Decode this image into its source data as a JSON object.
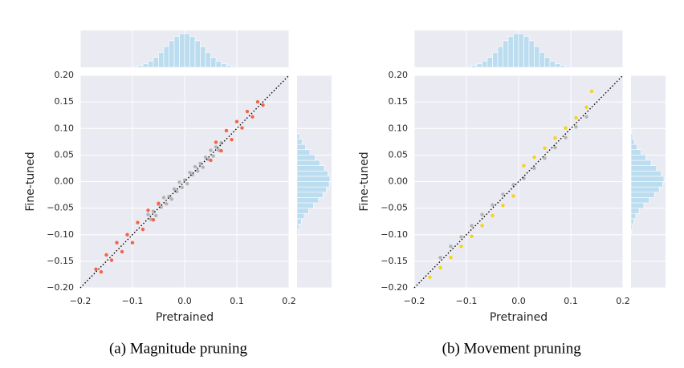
{
  "chart_data": [
    {
      "type": "scatter",
      "caption": "(a) Magnitude pruning",
      "xlabel": "Pretrained",
      "ylabel": "Fine-tuned",
      "xlim": [
        -0.2,
        0.2
      ],
      "ylim": [
        -0.2,
        0.2
      ],
      "xticks": [
        {
          "value": -0.2,
          "label": "−0.2"
        },
        {
          "value": -0.1,
          "label": "−0.1"
        },
        {
          "value": 0,
          "label": "0.0"
        },
        0.1,
        0.2
      ],
      "yticks": [
        {
          "value": -0.2,
          "label": "−0.20"
        },
        {
          "value": -0.15,
          "label": "−0.15"
        },
        {
          "value": -0.1,
          "label": "−0.10"
        },
        {
          "value": -0.05,
          "label": "−0.05"
        },
        {
          "value": 0,
          "label": "0.00"
        },
        0.05,
        {
          "value": 0.1,
          "label": "0.10"
        },
        0.15,
        {
          "value": 0.2,
          "label": "0.20"
        }
      ],
      "grid": true,
      "series": [
        {
          "color": "#b3b3b3",
          "x": [
            -0.07,
            -0.065,
            -0.06,
            -0.055,
            -0.05,
            -0.045,
            -0.04,
            -0.035,
            -0.03,
            -0.025,
            -0.02,
            -0.015,
            -0.01,
            -0.005,
            0,
            0.005,
            0.01,
            0.015,
            0.02,
            0.025,
            0.03,
            0.035,
            0.04,
            0.045,
            0.05,
            0.055,
            0.06,
            0.065,
            0.07
          ],
          "values": [
            -0.062,
            -0.071,
            -0.056,
            -0.064,
            -0.043,
            -0.048,
            -0.03,
            -0.042,
            -0.028,
            -0.033,
            -0.014,
            -0.019,
            -0.001,
            -0.011,
            0.003,
            -0.004,
            0.017,
            0.013,
            0.028,
            0.02,
            0.034,
            0.027,
            0.046,
            0.042,
            0.059,
            0.048,
            0.065,
            0.059,
            0.073
          ]
        },
        {
          "color": "#f4634a",
          "x": [
            -0.17,
            -0.16,
            -0.15,
            -0.14,
            -0.13,
            -0.12,
            -0.11,
            -0.1,
            -0.09,
            -0.08,
            -0.07,
            -0.06,
            -0.05,
            0.05,
            0.06,
            0.07,
            0.08,
            0.09,
            0.1,
            0.11,
            0.12,
            0.13,
            0.14,
            0.15
          ],
          "values": [
            -0.165,
            -0.17,
            -0.138,
            -0.148,
            -0.115,
            -0.132,
            -0.1,
            -0.115,
            -0.077,
            -0.09,
            -0.054,
            -0.072,
            -0.041,
            0.04,
            0.074,
            0.058,
            0.096,
            0.079,
            0.113,
            0.101,
            0.132,
            0.122,
            0.15,
            0.144
          ]
        }
      ],
      "marginal_x": {
        "color": "#bcdcf0",
        "bins": [
          -0.1,
          -0.09,
          -0.08,
          -0.07,
          -0.06,
          -0.05,
          -0.04,
          -0.03,
          -0.02,
          -0.01,
          0,
          0.01,
          0.02,
          0.03,
          0.04,
          0.05,
          0.06,
          0.07,
          0.08,
          0.09,
          0.1
        ],
        "counts": [
          3,
          5,
          10,
          18,
          29,
          44,
          61,
          78,
          91,
          99,
          99,
          91,
          78,
          61,
          44,
          29,
          18,
          10,
          5,
          3
        ]
      },
      "marginal_y": {
        "color": "#bcdcf0",
        "bins": [
          -0.1,
          -0.09,
          -0.08,
          -0.07,
          -0.06,
          -0.05,
          -0.04,
          -0.03,
          -0.02,
          -0.01,
          0,
          0.01,
          0.02,
          0.03,
          0.04,
          0.05,
          0.06,
          0.07,
          0.08,
          0.09,
          0.1
        ],
        "counts": [
          3,
          6,
          12,
          20,
          32,
          46,
          60,
          72,
          82,
          90,
          92,
          86,
          76,
          64,
          50,
          36,
          24,
          14,
          7,
          3
        ]
      }
    },
    {
      "type": "scatter",
      "caption": "(b) Movement pruning",
      "xlabel": "Pretrained",
      "ylabel": "Fine-tuned",
      "xlim": [
        -0.2,
        0.2
      ],
      "ylim": [
        -0.2,
        0.2
      ],
      "xticks": [
        {
          "value": -0.2,
          "label": "−0.2"
        },
        {
          "value": -0.1,
          "label": "−0.1"
        },
        {
          "value": 0,
          "label": "0.0"
        },
        0.1,
        0.2
      ],
      "yticks": [
        {
          "value": -0.2,
          "label": "−0.20"
        },
        {
          "value": -0.15,
          "label": "−0.15"
        },
        {
          "value": -0.1,
          "label": "−0.10"
        },
        {
          "value": -0.05,
          "label": "−0.05"
        },
        {
          "value": 0,
          "label": "0.00"
        },
        0.05,
        {
          "value": 0.1,
          "label": "0.10"
        },
        0.15,
        {
          "value": 0.2,
          "label": "0.20"
        }
      ],
      "grid": true,
      "series": [
        {
          "color": "#b3b3b3",
          "x": [
            -0.15,
            -0.13,
            -0.11,
            -0.09,
            -0.07,
            -0.05,
            -0.03,
            -0.01,
            0.01,
            0.03,
            0.05,
            0.07,
            0.09,
            0.11,
            0.13
          ],
          "values": [
            -0.143,
            -0.122,
            -0.104,
            -0.083,
            -0.062,
            -0.044,
            -0.024,
            -0.006,
            0.006,
            0.025,
            0.044,
            0.064,
            0.083,
            0.103,
            0.122
          ]
        },
        {
          "color": "#f5d31c",
          "x": [
            -0.17,
            -0.15,
            -0.13,
            -0.11,
            -0.09,
            -0.07,
            -0.05,
            -0.03,
            -0.01,
            0.01,
            0.03,
            0.05,
            0.07,
            0.09,
            0.11,
            0.13,
            0.14
          ],
          "values": [
            -0.18,
            -0.162,
            -0.143,
            -0.122,
            -0.103,
            -0.083,
            -0.064,
            -0.045,
            -0.027,
            0.03,
            0.046,
            0.063,
            0.082,
            0.101,
            0.12,
            0.14,
            0.17
          ]
        }
      ],
      "marginal_x": {
        "color": "#bcdcf0",
        "bins": [
          -0.1,
          -0.09,
          -0.08,
          -0.07,
          -0.06,
          -0.05,
          -0.04,
          -0.03,
          -0.02,
          -0.01,
          0,
          0.01,
          0.02,
          0.03,
          0.04,
          0.05,
          0.06,
          0.07,
          0.08,
          0.09,
          0.1
        ],
        "counts": [
          3,
          5,
          10,
          18,
          29,
          44,
          61,
          78,
          91,
          99,
          99,
          91,
          78,
          61,
          44,
          29,
          18,
          10,
          5,
          3
        ]
      },
      "marginal_y": {
        "color": "#bcdcf0",
        "bins": [
          -0.1,
          -0.09,
          -0.08,
          -0.07,
          -0.06,
          -0.05,
          -0.04,
          -0.03,
          -0.02,
          -0.01,
          0,
          0.01,
          0.02,
          0.03,
          0.04,
          0.05,
          0.06,
          0.07,
          0.08,
          0.09,
          0.1
        ],
        "counts": [
          2,
          4,
          8,
          14,
          24,
          38,
          54,
          70,
          84,
          94,
          98,
          90,
          76,
          60,
          44,
          30,
          18,
          10,
          5,
          2
        ]
      }
    }
  ]
}
